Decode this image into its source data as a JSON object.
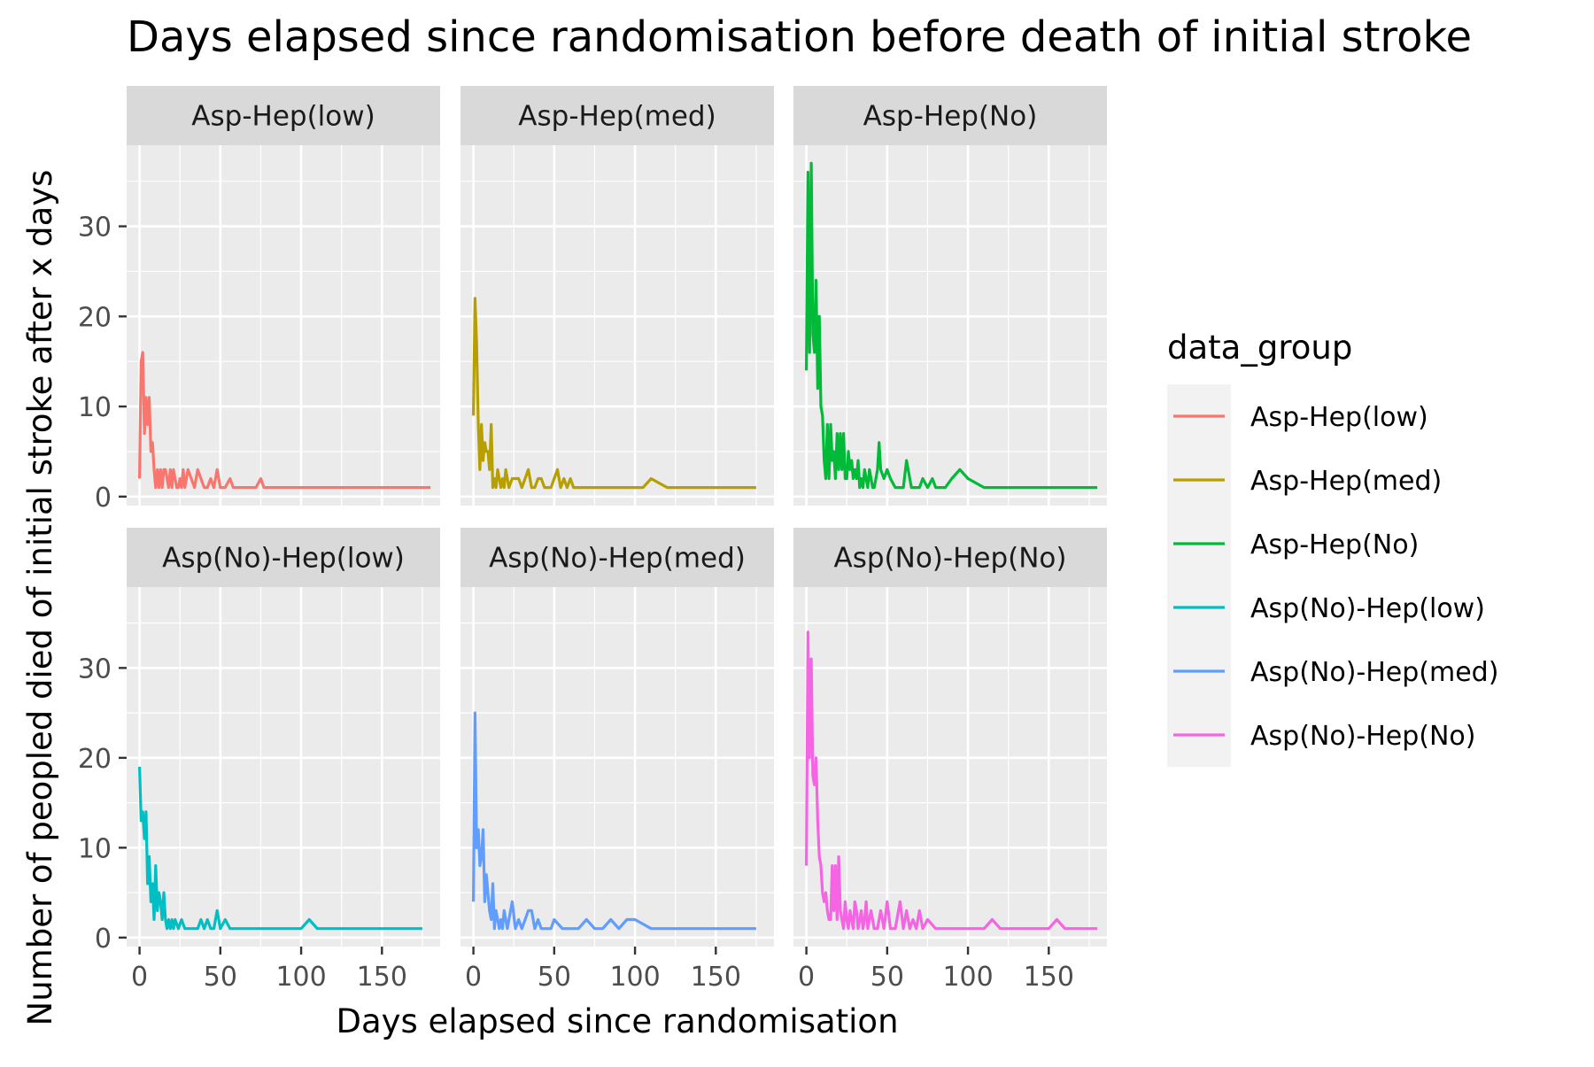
{
  "chart_data": {
    "type": "line",
    "title": "Days elapsed since randomisation before death of initial stroke",
    "xlabel": "Days elapsed since randomisation",
    "ylabel": "Number of peopled died of initial stroke after x days",
    "xlim": [
      -8,
      186
    ],
    "ylim": [
      -1,
      39
    ],
    "x_ticks": [
      0,
      50,
      100,
      150
    ],
    "y_ticks": [
      0,
      10,
      20,
      30
    ],
    "facet_layout": {
      "rows": 2,
      "cols": 3
    },
    "grid": true,
    "legend": {
      "title": "data_group",
      "position": "right",
      "entries": [
        "Asp-Hep(low)",
        "Asp-Hep(med)",
        "Asp-Hep(No)",
        "Asp(No)-Hep(low)",
        "Asp(No)-Hep(med)",
        "Asp(No)-Hep(No)"
      ]
    },
    "series": [
      {
        "name": "Asp-Hep(low)",
        "color": "#F8766D",
        "x": [
          0,
          1,
          2,
          3,
          4,
          5,
          6,
          7,
          8,
          9,
          10,
          11,
          12,
          13,
          14,
          15,
          16,
          17,
          18,
          19,
          20,
          21,
          22,
          23,
          24,
          25,
          26,
          27,
          28,
          30,
          32,
          34,
          36,
          38,
          40,
          42,
          44,
          46,
          48,
          50,
          53,
          56,
          58,
          62,
          65,
          68,
          72,
          75,
          77,
          80,
          85,
          90,
          100,
          110,
          120,
          130,
          140,
          150,
          160,
          170,
          180
        ],
        "y": [
          2,
          15,
          16,
          7,
          11,
          8,
          11,
          5,
          6,
          3,
          1,
          3,
          1,
          3,
          1,
          3,
          3,
          2,
          1,
          3,
          1,
          3,
          2,
          1,
          1,
          2,
          1,
          3,
          1,
          3,
          2,
          1,
          3,
          2,
          1,
          1,
          2,
          1,
          3,
          1,
          1,
          2,
          1,
          1,
          1,
          1,
          1,
          2,
          1,
          1,
          1,
          1,
          1,
          1,
          1,
          1,
          1,
          1,
          1,
          1,
          1
        ]
      },
      {
        "name": "Asp-Hep(med)",
        "color": "#B79F00",
        "x": [
          0,
          1,
          2,
          3,
          4,
          5,
          6,
          7,
          8,
          9,
          10,
          11,
          12,
          13,
          14,
          15,
          16,
          17,
          18,
          19,
          20,
          21,
          22,
          24,
          26,
          28,
          30,
          32,
          34,
          36,
          38,
          40,
          42,
          44,
          46,
          48,
          50,
          52,
          54,
          56,
          58,
          60,
          62,
          65,
          70,
          80,
          90,
          95,
          100,
          105,
          110,
          115,
          120,
          130,
          140,
          150,
          160,
          170,
          175
        ],
        "y": [
          9,
          22,
          17,
          8,
          3,
          8,
          4,
          6,
          5,
          5,
          3,
          8,
          1,
          2,
          1,
          3,
          2,
          1,
          2,
          1,
          3,
          2,
          1,
          2,
          2,
          2,
          1,
          2,
          3,
          1,
          1,
          2,
          2,
          1,
          1,
          1,
          2,
          3,
          1,
          2,
          1,
          2,
          1,
          1,
          1,
          1,
          1,
          1,
          1,
          1,
          2,
          1.5,
          1,
          1,
          1,
          1,
          1,
          1,
          1
        ]
      },
      {
        "name": "Asp-Hep(No)",
        "color": "#00BA38",
        "x": [
          0,
          1,
          2,
          3,
          4,
          5,
          6,
          7,
          8,
          9,
          10,
          11,
          12,
          13,
          14,
          15,
          16,
          17,
          18,
          19,
          20,
          21,
          22,
          23,
          24,
          25,
          26,
          27,
          28,
          29,
          30,
          31,
          32,
          33,
          34,
          35,
          36,
          37,
          38,
          39,
          40,
          41,
          42,
          43,
          44,
          45,
          46,
          48,
          50,
          52,
          55,
          58,
          60,
          62,
          65,
          68,
          70,
          72,
          75,
          78,
          80,
          83,
          86,
          90,
          95,
          100,
          110,
          120,
          130,
          140,
          150,
          160,
          170,
          180
        ],
        "y": [
          14,
          36,
          16,
          37,
          18,
          16,
          24,
          12,
          20,
          10,
          9,
          4,
          2,
          8,
          2,
          8,
          4,
          5,
          2,
          7,
          3,
          7,
          3,
          7,
          2,
          2,
          5,
          3,
          4,
          2,
          3,
          2,
          4,
          1,
          2,
          1,
          3,
          2,
          1,
          3,
          2,
          1,
          1,
          2,
          3,
          6,
          3,
          2,
          3,
          2,
          1,
          1,
          1,
          4,
          1,
          1,
          1,
          2,
          1,
          2,
          1,
          1,
          1,
          2,
          3,
          2,
          1,
          1,
          1,
          1,
          1,
          1,
          1,
          1
        ]
      },
      {
        "name": "Asp(No)-Hep(low)",
        "color": "#00BFC4",
        "x": [
          0,
          1,
          2,
          3,
          4,
          5,
          6,
          7,
          8,
          9,
          10,
          11,
          12,
          13,
          14,
          15,
          16,
          17,
          18,
          19,
          20,
          21,
          22,
          24,
          26,
          28,
          30,
          32,
          34,
          36,
          38,
          40,
          42,
          44,
          46,
          48,
          50,
          53,
          56,
          60,
          65,
          70,
          80,
          90,
          95,
          100,
          105,
          110,
          120,
          130,
          140,
          150,
          160,
          170,
          175
        ],
        "y": [
          19,
          13,
          14,
          11,
          14,
          6,
          9,
          4,
          6,
          2,
          8,
          3,
          5,
          4,
          2,
          5,
          2,
          1,
          2,
          1,
          2,
          1,
          2,
          1,
          2,
          1,
          1,
          1,
          1,
          1,
          2,
          1,
          2,
          1,
          1,
          3,
          1,
          2,
          1,
          1,
          1,
          1,
          1,
          1,
          1,
          1,
          2,
          1,
          1,
          1,
          1,
          1,
          1,
          1,
          1
        ]
      },
      {
        "name": "Asp(No)-Hep(med)",
        "color": "#619CFF",
        "x": [
          0,
          1,
          2,
          3,
          4,
          5,
          6,
          7,
          8,
          9,
          10,
          11,
          12,
          13,
          14,
          15,
          16,
          17,
          18,
          19,
          20,
          21,
          22,
          24,
          26,
          28,
          30,
          32,
          34,
          36,
          38,
          40,
          42,
          44,
          46,
          48,
          50,
          55,
          60,
          65,
          70,
          75,
          80,
          85,
          90,
          95,
          100,
          105,
          110,
          120,
          130,
          140,
          150,
          160,
          170,
          175
        ],
        "y": [
          4,
          25,
          10,
          12,
          8,
          9,
          12,
          4,
          7,
          5,
          3,
          2,
          6,
          1,
          3,
          2,
          1,
          2,
          1,
          3,
          2,
          1,
          2,
          4,
          1,
          2,
          1,
          2,
          3,
          3,
          1,
          2,
          1,
          1,
          1,
          1,
          2,
          1,
          1,
          1,
          2,
          1,
          1,
          2,
          1,
          2,
          2,
          1.5,
          1,
          1,
          1,
          1,
          1,
          1,
          1,
          1
        ]
      },
      {
        "name": "Asp(No)-Hep(No)",
        "color": "#F564E3",
        "x": [
          0,
          1,
          2,
          3,
          4,
          5,
          6,
          7,
          8,
          9,
          10,
          11,
          12,
          13,
          14,
          15,
          16,
          17,
          18,
          19,
          20,
          21,
          22,
          23,
          24,
          25,
          26,
          27,
          28,
          29,
          30,
          31,
          32,
          33,
          34,
          35,
          36,
          37,
          38,
          39,
          40,
          42,
          44,
          46,
          48,
          50,
          52,
          55,
          58,
          60,
          62,
          64,
          66,
          68,
          70,
          72,
          75,
          80,
          90,
          100,
          105,
          110,
          115,
          120,
          130,
          140,
          150,
          155,
          160,
          170,
          180
        ],
        "y": [
          8,
          34,
          20,
          31,
          18,
          17,
          20,
          13,
          9,
          8,
          5,
          4,
          5,
          3,
          2,
          2,
          8,
          3,
          8,
          2,
          9,
          3,
          2,
          1,
          4,
          2,
          1,
          3,
          2,
          1,
          4,
          3,
          1,
          2,
          3,
          1,
          2,
          4,
          1,
          2,
          3,
          1,
          1,
          3,
          1,
          4,
          1,
          1,
          4,
          1,
          3,
          1,
          2,
          1,
          3,
          1,
          2,
          1,
          1,
          1,
          1,
          1,
          2,
          1,
          1,
          1,
          1,
          2,
          1,
          1,
          1
        ]
      }
    ]
  }
}
